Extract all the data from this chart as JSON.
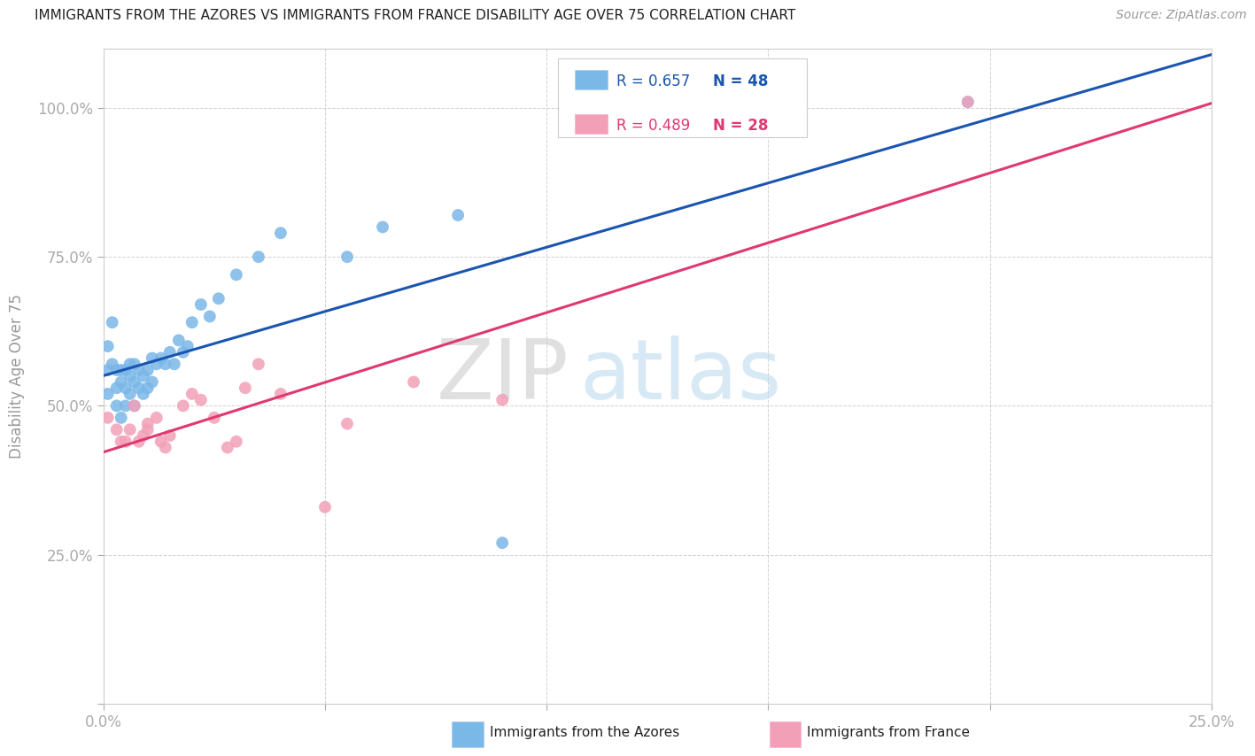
{
  "title": "IMMIGRANTS FROM THE AZORES VS IMMIGRANTS FROM FRANCE DISABILITY AGE OVER 75 CORRELATION CHART",
  "source": "Source: ZipAtlas.com",
  "ylabel": "Disability Age Over 75",
  "xlim": [
    0.0,
    0.25
  ],
  "ylim": [
    0.0,
    1.1
  ],
  "blue_color": "#7ab8e8",
  "pink_color": "#f2a0b8",
  "blue_line_color": "#1a55b0",
  "pink_line_color": "#e03870",
  "axis_tick_color": "#3388dd",
  "watermark_zip": "ZIP",
  "watermark_atlas": "atlas",
  "legend_r_blue": "0.657",
  "legend_n_blue": "48",
  "legend_r_pink": "0.489",
  "legend_n_pink": "28",
  "blue_x": [
    0.001,
    0.001,
    0.001,
    0.002,
    0.002,
    0.003,
    0.003,
    0.003,
    0.004,
    0.004,
    0.004,
    0.005,
    0.005,
    0.005,
    0.006,
    0.006,
    0.006,
    0.007,
    0.007,
    0.007,
    0.008,
    0.008,
    0.009,
    0.009,
    0.01,
    0.01,
    0.011,
    0.011,
    0.012,
    0.013,
    0.014,
    0.015,
    0.016,
    0.017,
    0.018,
    0.019,
    0.02,
    0.022,
    0.024,
    0.026,
    0.03,
    0.035,
    0.04,
    0.055,
    0.063,
    0.08,
    0.09,
    0.195
  ],
  "blue_y": [
    0.6,
    0.56,
    0.52,
    0.64,
    0.57,
    0.56,
    0.53,
    0.5,
    0.56,
    0.54,
    0.48,
    0.56,
    0.53,
    0.5,
    0.57,
    0.55,
    0.52,
    0.57,
    0.54,
    0.5,
    0.56,
    0.53,
    0.55,
    0.52,
    0.56,
    0.53,
    0.58,
    0.54,
    0.57,
    0.58,
    0.57,
    0.59,
    0.57,
    0.61,
    0.59,
    0.6,
    0.64,
    0.67,
    0.65,
    0.68,
    0.72,
    0.75,
    0.79,
    0.75,
    0.8,
    0.82,
    0.27,
    1.01
  ],
  "pink_x": [
    0.001,
    0.003,
    0.004,
    0.005,
    0.006,
    0.007,
    0.008,
    0.009,
    0.01,
    0.01,
    0.012,
    0.013,
    0.014,
    0.015,
    0.018,
    0.02,
    0.022,
    0.025,
    0.028,
    0.03,
    0.032,
    0.035,
    0.04,
    0.05,
    0.055,
    0.07,
    0.09,
    0.195
  ],
  "pink_y": [
    0.48,
    0.46,
    0.44,
    0.44,
    0.46,
    0.5,
    0.44,
    0.45,
    0.47,
    0.46,
    0.48,
    0.44,
    0.43,
    0.45,
    0.5,
    0.52,
    0.51,
    0.48,
    0.43,
    0.44,
    0.53,
    0.57,
    0.52,
    0.33,
    0.47,
    0.54,
    0.51,
    1.01
  ]
}
